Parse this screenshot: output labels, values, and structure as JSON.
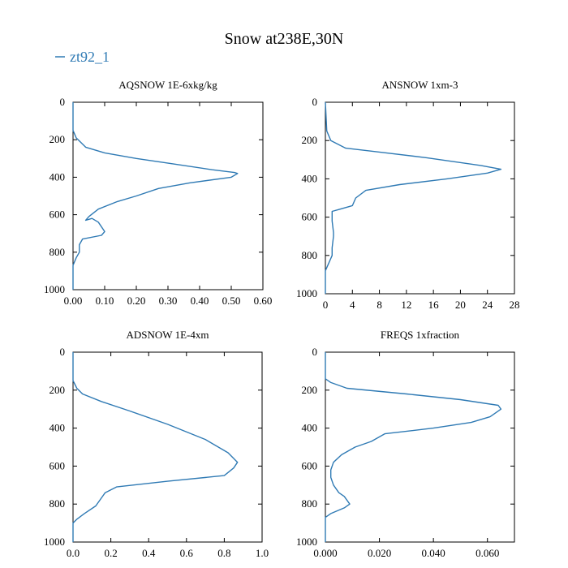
{
  "figure": {
    "title": "Snow at238E,30N",
    "legend": {
      "label": "zt92_1",
      "color": "#2f7ab4",
      "placement": "top-left"
    }
  },
  "chart_data": [
    {
      "type": "line",
      "title": "AQSNOW  1E-6xkg/kg",
      "xlim": [
        0,
        0.6
      ],
      "ylim": [
        1000,
        0
      ],
      "xticks": [
        "0.00",
        "0.10",
        "0.20",
        "0.30",
        "0.40",
        "0.50",
        "0.60"
      ],
      "xtick_values": [
        0,
        0.1,
        0.2,
        0.3,
        0.4,
        0.5,
        0.6
      ],
      "yticks": [
        "0",
        "200",
        "400",
        "600",
        "800",
        "1000"
      ],
      "ytick_values": [
        0,
        200,
        400,
        600,
        800,
        1000
      ],
      "series": [
        {
          "name": "zt92_1",
          "color": "#2f7ab4",
          "x": [
            0,
            0,
            0.01,
            0.04,
            0.1,
            0.2,
            0.32,
            0.44,
            0.51,
            0.52,
            0.5,
            0.37,
            0.27,
            0.2,
            0.14,
            0.08,
            0.05,
            0.04,
            0.06,
            0.08,
            0.1,
            0.09,
            0.03,
            0.02,
            0.02,
            0.01,
            0,
            0
          ],
          "y": [
            0,
            150,
            190,
            240,
            270,
            300,
            330,
            360,
            375,
            380,
            400,
            430,
            460,
            500,
            530,
            570,
            610,
            630,
            620,
            640,
            690,
            710,
            730,
            760,
            800,
            830,
            870,
            1000
          ]
        }
      ]
    },
    {
      "type": "line",
      "title": "ANSNOW  1xm-3",
      "xlim": [
        0,
        28
      ],
      "ylim": [
        1000,
        0
      ],
      "xticks": [
        "0",
        "4",
        "8",
        "12",
        "16",
        "20",
        "24",
        "28"
      ],
      "xtick_values": [
        0,
        4,
        8,
        12,
        16,
        20,
        24,
        28
      ],
      "yticks": [
        "0",
        "200",
        "400",
        "600",
        "800",
        "1000"
      ],
      "ytick_values": [
        0,
        200,
        400,
        600,
        800,
        1000
      ],
      "series": [
        {
          "name": "zt92_1",
          "color": "#2f7ab4",
          "x": [
            0,
            0.2,
            0.8,
            3,
            8,
            15,
            23,
            26,
            24,
            18,
            11,
            6,
            4.5,
            4,
            2,
            1,
            1,
            1.2,
            1.2,
            1,
            1,
            0.5,
            0,
            0
          ],
          "y": [
            0,
            150,
            200,
            240,
            260,
            290,
            330,
            350,
            370,
            400,
            430,
            460,
            500,
            540,
            560,
            570,
            620,
            680,
            700,
            760,
            800,
            840,
            880,
            1000
          ]
        }
      ]
    },
    {
      "type": "line",
      "title": "ADSNOW  1E-4xm",
      "xlim": [
        0,
        1.0
      ],
      "ylim": [
        1000,
        0
      ],
      "xticks": [
        "0.0",
        "0.2",
        "0.4",
        "0.6",
        "0.8",
        "1.0"
      ],
      "xtick_values": [
        0,
        0.2,
        0.4,
        0.6,
        0.8,
        1.0
      ],
      "yticks": [
        "0",
        "200",
        "400",
        "600",
        "800",
        "1000"
      ],
      "ytick_values": [
        0,
        200,
        400,
        600,
        800,
        1000
      ],
      "series": [
        {
          "name": "zt92_1",
          "color": "#2f7ab4",
          "x": [
            0,
            0,
            0.02,
            0.05,
            0.15,
            0.3,
            0.5,
            0.7,
            0.82,
            0.87,
            0.85,
            0.8,
            0.5,
            0.23,
            0.17,
            0.12,
            0.06,
            0.02,
            0,
            0
          ],
          "y": [
            0,
            150,
            190,
            220,
            260,
            310,
            380,
            460,
            530,
            580,
            610,
            650,
            680,
            710,
            740,
            810,
            850,
            880,
            900,
            1000
          ]
        }
      ]
    },
    {
      "type": "line",
      "title": "FREQS  1xfraction",
      "xlim": [
        0,
        0.07
      ],
      "ylim": [
        1000,
        0
      ],
      "xticks": [
        "0.000",
        "0.020",
        "0.040",
        "0.060"
      ],
      "xtick_values": [
        0,
        0.02,
        0.04,
        0.06
      ],
      "yticks": [
        "0",
        "200",
        "400",
        "600",
        "800",
        "1000"
      ],
      "ytick_values": [
        0,
        200,
        400,
        600,
        800,
        1000
      ],
      "series": [
        {
          "name": "zt92_1",
          "color": "#2f7ab4",
          "x": [
            0,
            0,
            0.002,
            0.008,
            0.03,
            0.05,
            0.064,
            0.065,
            0.061,
            0.054,
            0.04,
            0.022,
            0.017,
            0.011,
            0.006,
            0.003,
            0.002,
            0.002,
            0.003,
            0.005,
            0.007,
            0.009,
            0.007,
            0.002,
            0,
            0
          ],
          "y": [
            0,
            140,
            160,
            190,
            220,
            250,
            280,
            300,
            340,
            370,
            400,
            430,
            470,
            500,
            540,
            580,
            620,
            660,
            700,
            740,
            760,
            800,
            820,
            850,
            870,
            1000
          ]
        }
      ]
    }
  ]
}
